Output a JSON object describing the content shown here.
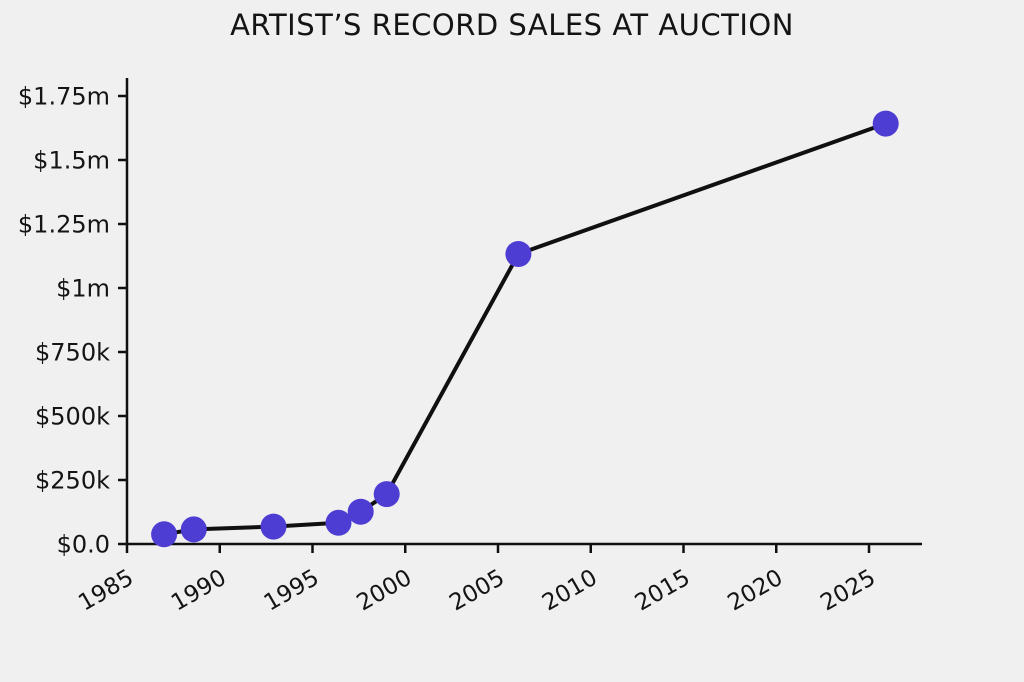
{
  "chart_data": {
    "type": "line",
    "title": "ARTIST’S RECORD SALES AT AUCTION",
    "xlabel": "",
    "ylabel": "",
    "x": [
      1987.0,
      1988.6,
      1992.9,
      1996.4,
      1997.6,
      1999.0,
      2006.1,
      2025.9
    ],
    "values": [
      38000,
      57000,
      68000,
      83000,
      126000,
      195000,
      1133000,
      1642000
    ],
    "xlim": [
      1985,
      2027.8
    ],
    "ylim": [
      0,
      1750000
    ],
    "grid": false,
    "legend_position": "none",
    "xticks": {
      "values": [
        1985,
        1990,
        1995,
        2000,
        2005,
        2010,
        2015,
        2020,
        2025
      ],
      "labels": [
        "1985",
        "1990",
        "1995",
        "2000",
        "2005",
        "2010",
        "2015",
        "2020",
        "2025"
      ],
      "rotation_deg": 30
    },
    "yticks": {
      "values": [
        0,
        250000,
        500000,
        750000,
        1000000,
        1250000,
        1500000,
        1750000
      ],
      "labels": [
        "$0.0",
        "$250k",
        "$500k",
        "$750k",
        "$1m",
        "$1.25m",
        "$1.5m",
        "$1.75m"
      ]
    },
    "style": {
      "background_color": "#f0f0f0",
      "line_color": "#101010",
      "marker_color": "#4e3dd3",
      "text_color": "#141414",
      "axis_color": "#101010"
    }
  }
}
